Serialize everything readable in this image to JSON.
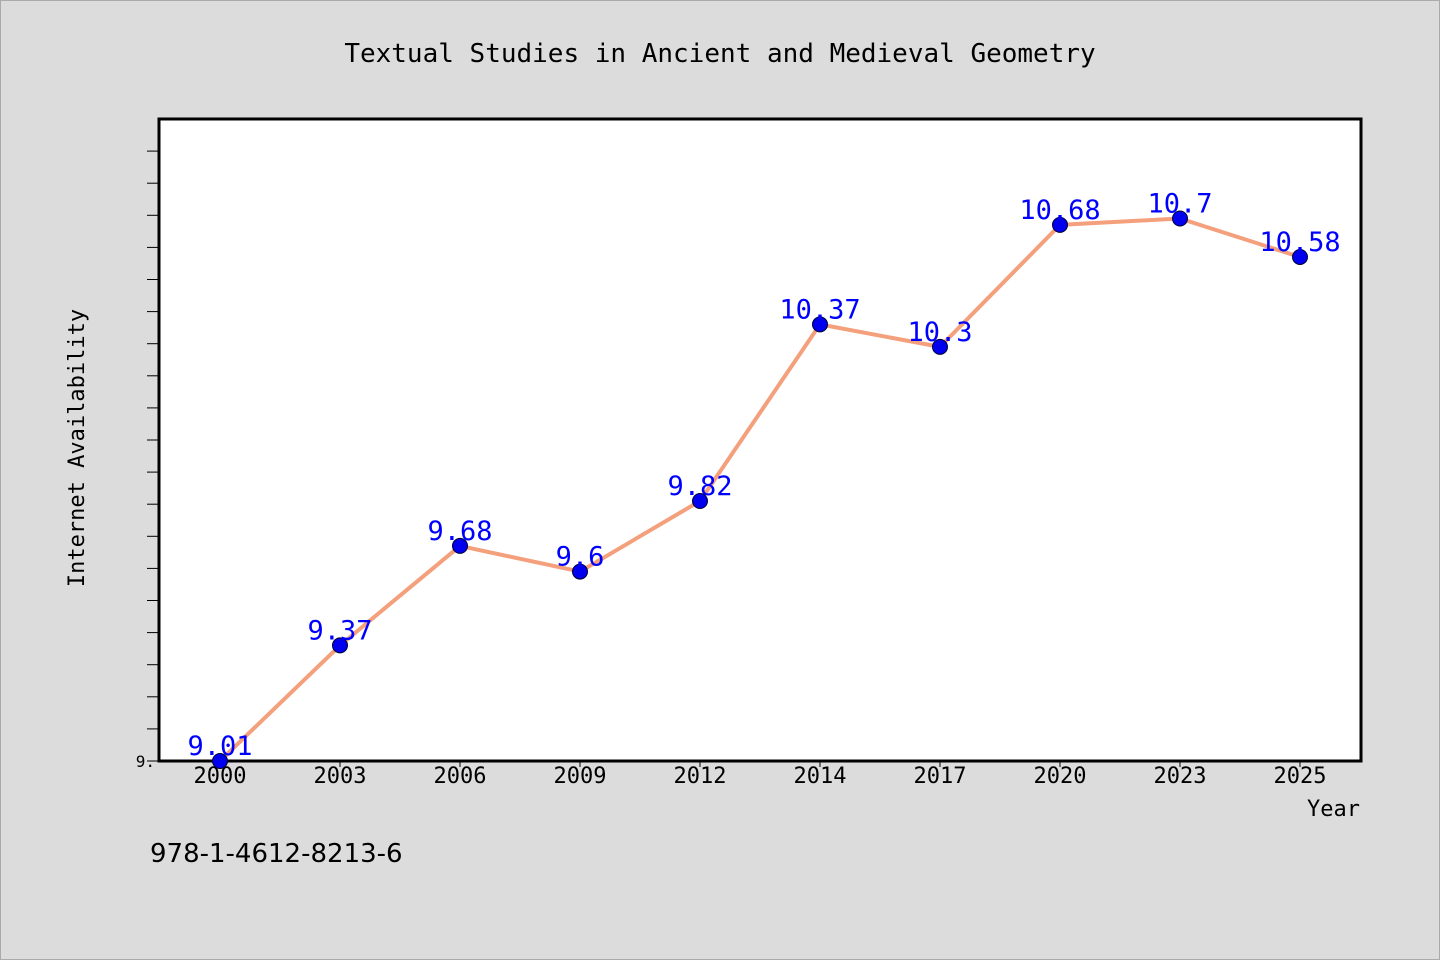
{
  "colors": {
    "background": "#dcdcdc",
    "plot_background": "#ffffff",
    "line": "#f4a07c",
    "marker": "#0000ee",
    "data_label": "#0000ff",
    "axis": "#000000"
  },
  "chart_data": {
    "type": "line",
    "title": "Textual Studies in Ancient and Medieval Geometry",
    "xlabel": "Year",
    "ylabel": "Internet Availability",
    "categories": [
      "2000",
      "2003",
      "2006",
      "2009",
      "2012",
      "2014",
      "2017",
      "2020",
      "2023",
      "2025"
    ],
    "series": [
      {
        "values": [
          9.01,
          9.37,
          9.68,
          9.6,
          9.82,
          10.37,
          10.3,
          10.68,
          10.7,
          10.58
        ],
        "labels": [
          "9.01",
          "9.37",
          "9.68",
          "9.6",
          "9.82",
          "10.37",
          "10.3",
          "10.68",
          "10.7",
          "10.58"
        ]
      }
    ],
    "ylim": [
      9.01,
      11.01
    ],
    "y_tick_labels": [
      "9."
    ],
    "grid": false,
    "legend": "none",
    "footnote": "978-1-4612-8213-6"
  }
}
